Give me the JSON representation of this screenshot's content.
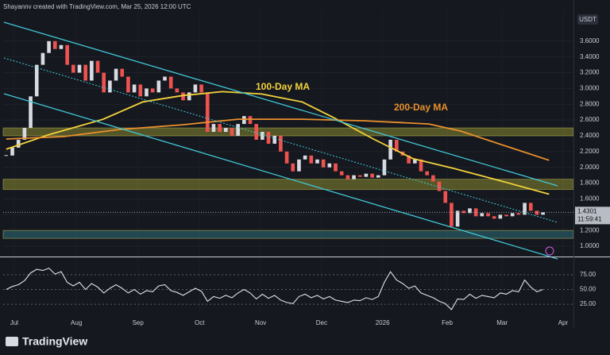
{
  "header": {
    "title": "Shayannv created with TradingView.com, Mar 25, 2026 12:00 UTC"
  },
  "footer": {
    "logo": "TradingView"
  },
  "chart_data": [
    {
      "type": "candlestick",
      "currency": "USDT",
      "xlim": [
        -0.5,
        93
      ],
      "ylim": [
        0.88,
        3.9
      ],
      "xticks": [
        {
          "value": 1.3,
          "label": "Jul"
        },
        {
          "value": 11.5,
          "label": "Aug"
        },
        {
          "value": 21.6,
          "label": "Sep"
        },
        {
          "value": 31.7,
          "label": "Oct"
        },
        {
          "value": 41.7,
          "label": "Nov"
        },
        {
          "value": 51.7,
          "label": "Dec"
        },
        {
          "value": 61.7,
          "label": "2026"
        },
        {
          "value": 72.3,
          "label": "Feb"
        },
        {
          "value": 81.3,
          "label": "Mar"
        },
        {
          "value": 91.3,
          "label": "Apr"
        }
      ],
      "yticks": [
        {
          "value": 1.0,
          "label": "1.0000"
        },
        {
          "value": 1.2,
          "label": "1.2000"
        },
        {
          "value": 1.4,
          "label": "1.4000"
        },
        {
          "value": 1.6,
          "label": "1.6000"
        },
        {
          "value": 1.8,
          "label": "1.8000"
        },
        {
          "value": 2.0,
          "label": "2.0000"
        },
        {
          "value": 2.2,
          "label": "2.2000"
        },
        {
          "value": 2.4,
          "label": "2.4000"
        },
        {
          "value": 2.6,
          "label": "2.6000"
        },
        {
          "value": 2.8,
          "label": "2.8000"
        },
        {
          "value": 3.0,
          "label": "3.0000"
        },
        {
          "value": 3.2,
          "label": "3.2000"
        },
        {
          "value": 3.4,
          "label": "3.4000"
        },
        {
          "value": 3.6,
          "label": "3.6000"
        }
      ],
      "last_price": {
        "value": 1.4301,
        "label": "1.4301",
        "countdown": "11:59:41"
      },
      "zones": [
        {
          "low": 2.4,
          "high": 2.5,
          "color": "#8a8a2e"
        },
        {
          "low": 1.72,
          "high": 1.85,
          "color": "#8a8a2e"
        },
        {
          "low": 1.1,
          "high": 1.2,
          "color": "#2f6f78"
        }
      ],
      "up_color": "#d8dbe2",
      "down_color": "#ef5350",
      "series": [
        {
          "kind": "close",
          "values": [
            2.15,
            2.25,
            2.35,
            2.5,
            2.9,
            3.3,
            3.45,
            3.6,
            3.5,
            3.55,
            3.3,
            3.2,
            3.3,
            3.1,
            3.35,
            3.2,
            2.95,
            3.1,
            3.25,
            3.15,
            2.95,
            3.05,
            2.9,
            3.0,
            2.95,
            3.1,
            3.15,
            3.0,
            2.95,
            2.85,
            2.95,
            3.05,
            2.95,
            2.45,
            2.55,
            2.45,
            2.5,
            2.4,
            2.55,
            2.65,
            2.55,
            2.35,
            2.45,
            2.3,
            2.4,
            2.2,
            2.05,
            1.95,
            2.1,
            2.15,
            2.05,
            2.1,
            2.0,
            2.05,
            1.95,
            1.9,
            1.85,
            1.9,
            1.88,
            1.92,
            1.87,
            1.9,
            2.1,
            2.35,
            2.2,
            2.15,
            2.05,
            2.1,
            1.95,
            1.9,
            1.82,
            1.7,
            1.55,
            1.25,
            1.45,
            1.42,
            1.48,
            1.38,
            1.42,
            1.38,
            1.35,
            1.4,
            1.38,
            1.42,
            1.4,
            1.55,
            1.45,
            1.4,
            1.43
          ]
        },
        {
          "kind": "line",
          "name": "100-Day MA",
          "color": "#f2d23c",
          "x": [
            0,
            6.8,
            15.9,
            22.4,
            28.9,
            35.4,
            41.9,
            48.5,
            53.7,
            60.2,
            66.7,
            73.2,
            81,
            89
          ],
          "values": [
            2.23,
            2.41,
            2.61,
            2.83,
            2.91,
            2.96,
            2.93,
            2.83,
            2.63,
            2.36,
            2.11,
            1.99,
            1.83,
            1.66
          ]
        },
        {
          "kind": "line",
          "name": "200-Day MA",
          "color": "#e8912c",
          "x": [
            0,
            9.4,
            18.5,
            28.9,
            38,
            48.5,
            58.9,
            69.3,
            74.5,
            82.3,
            89
          ],
          "values": [
            2.36,
            2.39,
            2.48,
            2.54,
            2.61,
            2.61,
            2.59,
            2.55,
            2.46,
            2.26,
            2.09
          ]
        }
      ]
    },
    {
      "type": "line",
      "ylim": [
        9,
        103
      ],
      "yticks": [
        {
          "value": 25,
          "label": "25.00"
        },
        {
          "value": 50,
          "label": "50.00"
        },
        {
          "value": 75,
          "label": "75.00"
        }
      ],
      "series": [
        {
          "color": "#dfe2ea",
          "values": [
            50,
            55,
            58,
            65,
            78,
            84,
            82,
            86,
            76,
            80,
            62,
            56,
            62,
            50,
            60,
            54,
            44,
            52,
            58,
            52,
            44,
            50,
            42,
            48,
            46,
            56,
            58,
            48,
            45,
            40,
            46,
            52,
            47,
            30,
            38,
            35,
            40,
            36,
            44,
            50,
            44,
            34,
            42,
            35,
            40,
            32,
            28,
            26,
            38,
            42,
            36,
            40,
            34,
            38,
            32,
            30,
            28,
            32,
            31,
            36,
            33,
            38,
            62,
            80,
            66,
            60,
            52,
            56,
            44,
            40,
            36,
            30,
            26,
            16,
            34,
            33,
            42,
            35,
            40,
            38,
            36,
            44,
            42,
            48,
            46,
            66,
            54,
            46,
            50
          ]
        }
      ]
    }
  ]
}
